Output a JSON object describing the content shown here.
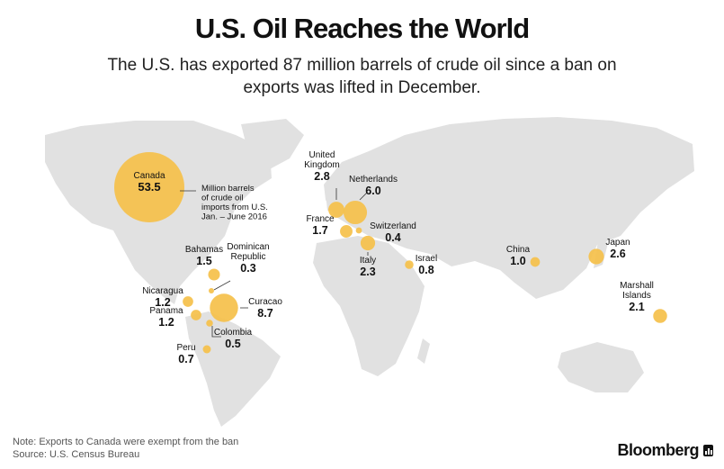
{
  "header": {
    "title": "U.S. Oil Reaches the World",
    "subtitle": "The U.S. has exported 87 million barrels of crude oil since a ban on exports was lifted in December."
  },
  "legend_note": [
    "Million barrels",
    "of crude oil",
    "imports from U.S.",
    "Jan. – June 2016"
  ],
  "footer": {
    "note": "Note: Exports to Canada were exempt from the ban",
    "source": "Source: U.S. Census Bureau",
    "brand": "Bloomberg"
  },
  "colors": {
    "bubble": "#F5C04A",
    "land": "#E1E1E1",
    "background": "#FFFFFF"
  },
  "chart_data": {
    "type": "bubble-map",
    "title": "U.S. Oil Reaches the World",
    "unit": "Million barrels of crude oil imports from U.S. Jan. – June 2016",
    "points": [
      {
        "name": "Canada",
        "value": 53.5,
        "name_lines": [
          "Canada"
        ]
      },
      {
        "name": "United Kingdom",
        "value": 2.8,
        "name_lines": [
          "United",
          "Kingdom"
        ]
      },
      {
        "name": "Netherlands",
        "value": 6.0,
        "name_lines": [
          "Netherlands"
        ]
      },
      {
        "name": "France",
        "value": 1.7,
        "name_lines": [
          "France"
        ]
      },
      {
        "name": "Switzerland",
        "value": 0.4,
        "name_lines": [
          "Switzerland"
        ]
      },
      {
        "name": "Italy",
        "value": 2.3,
        "name_lines": [
          "Italy"
        ]
      },
      {
        "name": "Israel",
        "value": 0.8,
        "name_lines": [
          "Israel"
        ]
      },
      {
        "name": "China",
        "value": 1.0,
        "name_lines": [
          "China"
        ]
      },
      {
        "name": "Japan",
        "value": 2.6,
        "name_lines": [
          "Japan"
        ]
      },
      {
        "name": "Marshall Islands",
        "value": 2.1,
        "name_lines": [
          "Marshall",
          "Islands"
        ]
      },
      {
        "name": "Bahamas",
        "value": 1.5,
        "name_lines": [
          "Bahamas"
        ]
      },
      {
        "name": "Dominican Republic",
        "value": 0.3,
        "name_lines": [
          "Dominican",
          "Republic"
        ]
      },
      {
        "name": "Curacao",
        "value": 8.7,
        "name_lines": [
          "Curacao"
        ]
      },
      {
        "name": "Nicaragua",
        "value": 1.2,
        "name_lines": [
          "Nicaragua"
        ]
      },
      {
        "name": "Panama",
        "value": 1.2,
        "name_lines": [
          "Panama"
        ]
      },
      {
        "name": "Colombia",
        "value": 0.5,
        "name_lines": [
          "Colombia"
        ]
      },
      {
        "name": "Peru",
        "value": 0.7,
        "name_lines": [
          "Peru"
        ]
      }
    ]
  }
}
